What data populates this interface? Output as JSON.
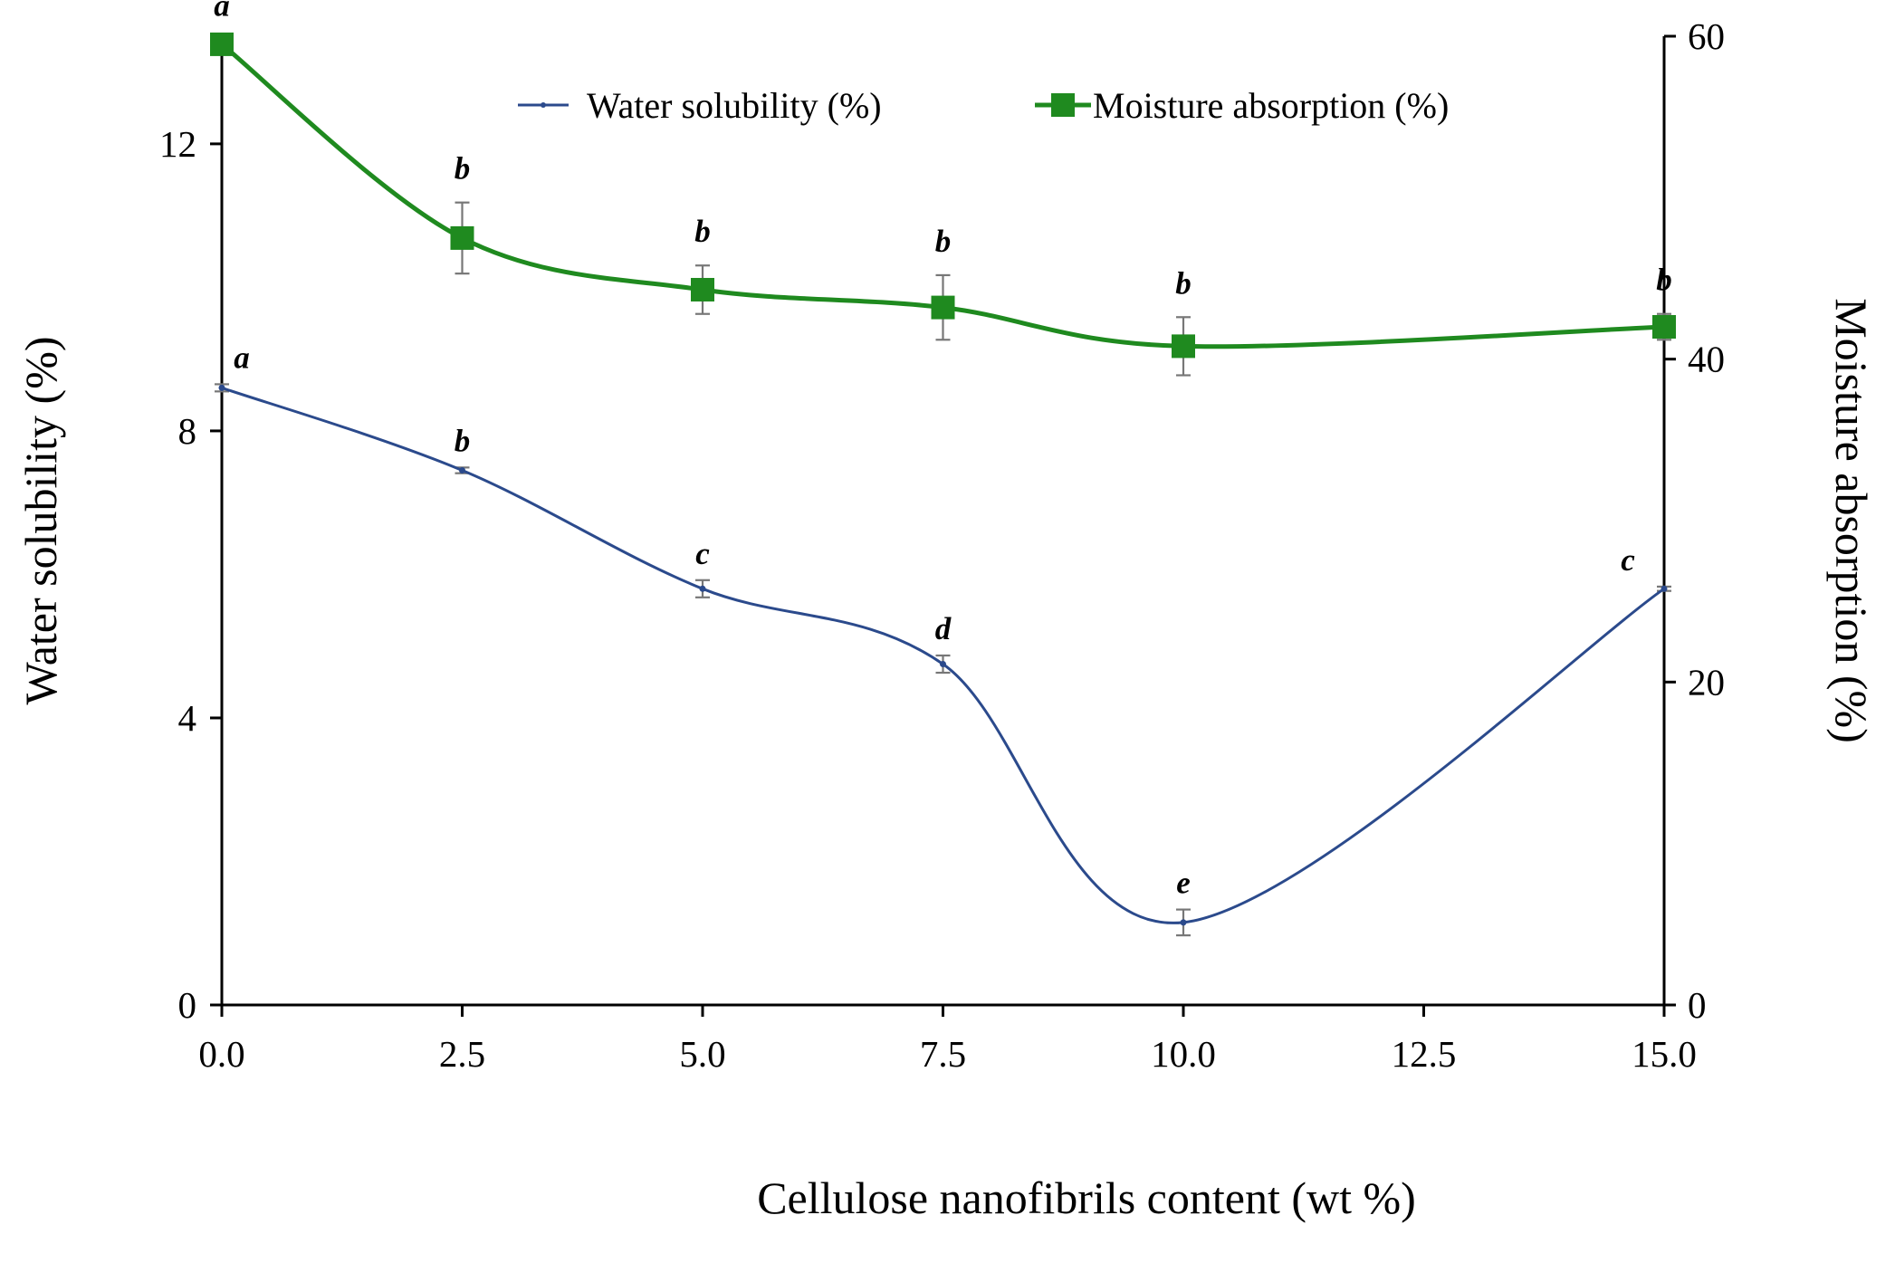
{
  "chart_data": {
    "type": "line",
    "xlabel": "Cellulose nanofibrils content (wt %)",
    "ylabel_left": "Water solubility (%)",
    "ylabel_right": "Moisture absorption (%)",
    "xlim": [
      0,
      15
    ],
    "ylim_left": [
      0,
      13.5
    ],
    "ylim_right": [
      0,
      60
    ],
    "x_ticks": [
      0,
      2.5,
      5,
      7.5,
      10,
      12.5,
      15
    ],
    "x_tick_labels": [
      "0.0",
      "2.5",
      "5.0",
      "7.5",
      "10.0",
      "12.5",
      "15.0"
    ],
    "y_left_ticks": [
      0,
      4,
      8,
      12
    ],
    "y_left_tick_labels": [
      "0",
      "4",
      "8",
      "12"
    ],
    "y_right_ticks": [
      0,
      20,
      40,
      60
    ],
    "y_right_tick_labels": [
      "0",
      "20",
      "40",
      "60"
    ],
    "grid": false,
    "legend_position": "top-center",
    "series": [
      {
        "name": "Water solubility (%)",
        "axis": "left",
        "color": "#2b4a8c",
        "marker": "dot",
        "x": [
          0,
          2.5,
          5,
          7.5,
          10,
          15
        ],
        "values": [
          8.6,
          7.45,
          5.8,
          4.75,
          1.15,
          5.8
        ],
        "errors": [
          0.05,
          0.04,
          0.12,
          0.12,
          0.18,
          0.03
        ],
        "letters": [
          "a",
          "b",
          "c",
          "d",
          "e",
          "c"
        ]
      },
      {
        "name": "Moisture absorption (%)",
        "axis": "right",
        "color": "#1f8a1f",
        "marker": "square",
        "x": [
          0,
          2.5,
          5,
          7.5,
          10,
          15
        ],
        "values": [
          59.5,
          47.5,
          44.3,
          43.2,
          40.8,
          42.0
        ],
        "errors": [
          0.3,
          2.2,
          1.5,
          2.0,
          1.8,
          0.8
        ],
        "letters": [
          "a",
          "b",
          "b",
          "b",
          "b",
          "b"
        ]
      }
    ]
  }
}
